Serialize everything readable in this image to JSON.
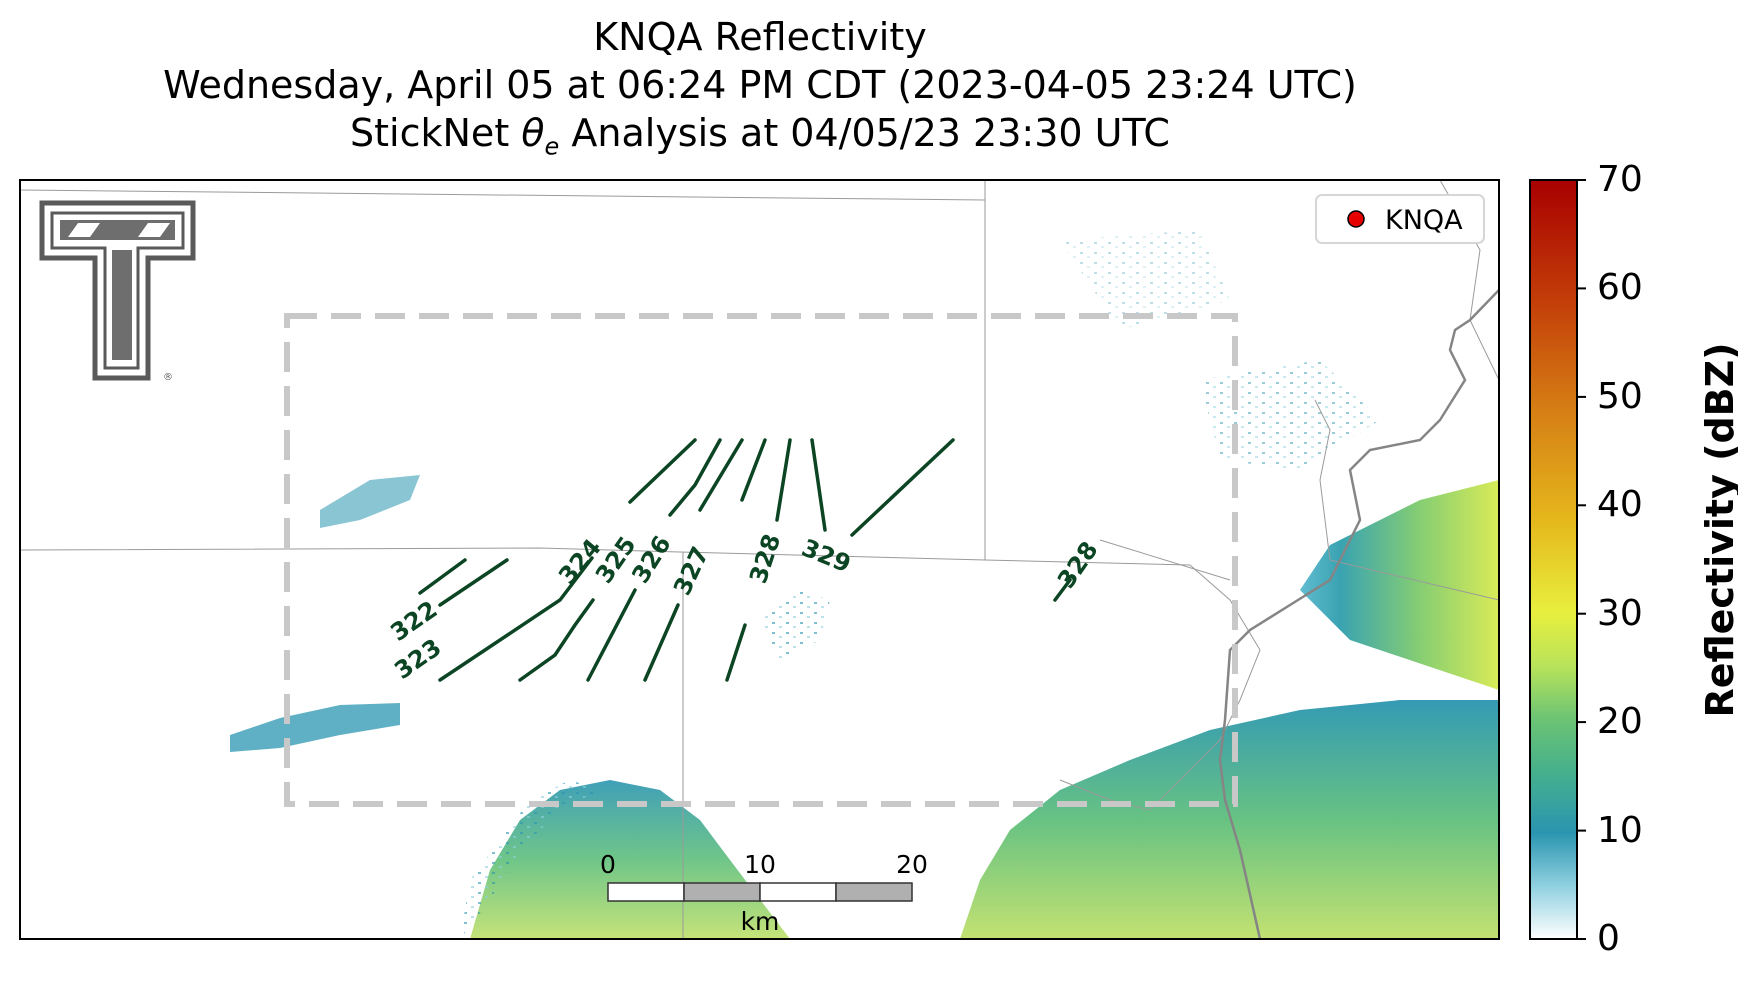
{
  "title": {
    "line1": "KNQA Reflectivity",
    "line2": "Wednesday, April 05 at 06:24 PM CDT (2023-04-05 23:24 UTC)",
    "line3_prefix": "StickNet ",
    "line3_symbol": "θ",
    "line3_subscript": "e",
    "line3_suffix": " Analysis at 04/05/23 23:30 UTC"
  },
  "legend": {
    "label": "KNQA",
    "marker_color": "#e60000"
  },
  "colorbar": {
    "label": "Reflectivity (dBZ)",
    "ticks": [
      "0",
      "10",
      "20",
      "30",
      "40",
      "50",
      "60",
      "70"
    ],
    "colors": [
      "#ffffff",
      "#2a95b0",
      "#6cc474",
      "#e8ef3e",
      "#e5b81c",
      "#d57d14",
      "#c23a08",
      "#a80000"
    ]
  },
  "contours": {
    "color": "#0b4523",
    "labels": [
      "322",
      "323",
      "324",
      "325",
      "326",
      "327",
      "328",
      "329",
      "328"
    ]
  },
  "scalebar": {
    "ticks": [
      "0",
      "10",
      "20"
    ],
    "unit": "km"
  },
  "logo": {
    "name": "Texas Tech Double T",
    "mark": "®"
  }
}
